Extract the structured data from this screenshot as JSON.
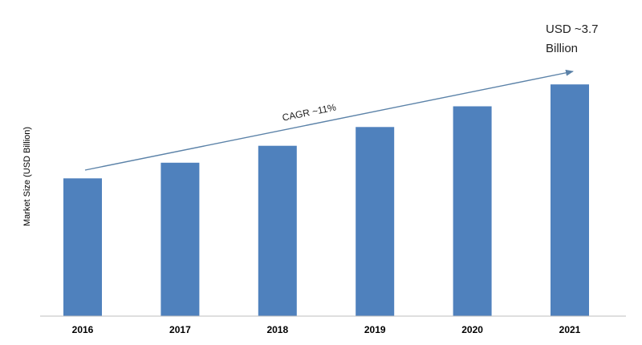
{
  "chart_data": {
    "type": "bar",
    "categories": [
      "2016",
      "2017",
      "2018",
      "2019",
      "2020",
      "2021"
    ],
    "values": [
      2.2,
      2.45,
      2.72,
      3.02,
      3.35,
      3.7
    ],
    "ylabel": "Market Size (USD Billion)",
    "xlabel": "",
    "title": "",
    "ylim": [
      0,
      4.1
    ],
    "grid": false,
    "legend": "none",
    "bar_color": "#4f81bd",
    "annotations": {
      "cagr": "CAGR ~11%",
      "final_value_line1": "USD ~3.7",
      "final_value_line2": "Billion"
    }
  }
}
